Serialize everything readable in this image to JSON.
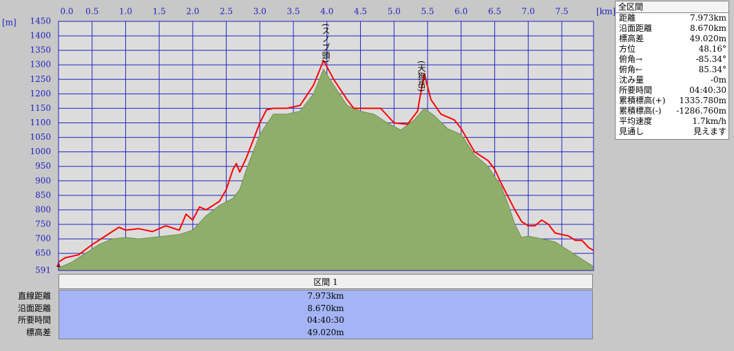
{
  "chart_data": {
    "type": "elevation-profile",
    "x_label": "[km]",
    "y_label": "[m]",
    "xlim": [
      0,
      7.973
    ],
    "ylim": [
      591,
      1450
    ],
    "xticks": [
      {
        "value": 0,
        "label": "0.0"
      },
      0.5,
      {
        "value": 1,
        "label": "1.0"
      },
      1.5,
      {
        "value": 2,
        "label": "2.0"
      },
      2.5,
      {
        "value": 3,
        "label": "3.0"
      },
      3.5,
      {
        "value": 4,
        "label": "4.0"
      },
      4.5,
      {
        "value": 5,
        "label": "5.0"
      },
      5.5,
      {
        "value": 6,
        "label": "6.0"
      },
      6.5,
      {
        "value": 7,
        "label": "7.0"
      },
      7.5
    ],
    "yticks": [
      591,
      650,
      700,
      750,
      800,
      850,
      900,
      950,
      1000,
      1050,
      1100,
      1150,
      1200,
      1250,
      1300,
      1350,
      1400,
      1450
    ],
    "grid": true,
    "annotations": [
      "(スノブ頭)",
      "(天狗岳)"
    ],
    "series": [
      {
        "kind": "area",
        "color": "#8fae6b",
        "x": [
          0,
          0.2,
          0.4,
          0.6,
          0.8,
          1.0,
          1.2,
          1.4,
          1.6,
          1.8,
          2.0,
          2.2,
          2.4,
          2.6,
          2.7,
          2.8,
          3.0,
          3.2,
          3.4,
          3.6,
          3.8,
          3.95,
          4.1,
          4.3,
          4.5,
          4.7,
          4.9,
          5.1,
          5.3,
          5.45,
          5.6,
          5.8,
          6.0,
          6.2,
          6.4,
          6.6,
          6.7,
          6.8,
          6.9,
          7.0,
          7.2,
          7.4,
          7.6,
          7.8,
          7.973
        ],
        "values": [
          600,
          620,
          650,
          680,
          700,
          705,
          700,
          705,
          710,
          715,
          730,
          780,
          815,
          840,
          870,
          940,
          1060,
          1130,
          1130,
          1140,
          1200,
          1285,
          1230,
          1160,
          1140,
          1130,
          1100,
          1075,
          1110,
          1150,
          1125,
          1080,
          1060,
          990,
          950,
          880,
          820,
          750,
          705,
          710,
          700,
          690,
          660,
          630,
          605
        ]
      },
      {
        "kind": "line",
        "color": "#ff0000",
        "x": [
          0,
          0.1,
          0.3,
          0.5,
          0.7,
          0.8,
          0.9,
          1.0,
          1.2,
          1.4,
          1.6,
          1.8,
          1.9,
          2.0,
          2.1,
          2.2,
          2.4,
          2.5,
          2.6,
          2.65,
          2.7,
          2.8,
          3.0,
          3.1,
          3.2,
          3.4,
          3.6,
          3.8,
          3.95,
          4.1,
          4.3,
          4.4,
          4.6,
          4.8,
          5.0,
          5.2,
          5.35,
          5.45,
          5.55,
          5.7,
          5.9,
          6.0,
          6.2,
          6.4,
          6.5,
          6.6,
          6.8,
          6.9,
          7.0,
          7.1,
          7.2,
          7.3,
          7.4,
          7.5,
          7.6,
          7.7,
          7.8,
          7.9,
          7.973
        ],
        "values": [
          620,
          635,
          645,
          680,
          710,
          725,
          740,
          730,
          735,
          725,
          745,
          730,
          785,
          765,
          810,
          800,
          830,
          870,
          940,
          960,
          930,
          980,
          1100,
          1145,
          1150,
          1150,
          1160,
          1230,
          1315,
          1250,
          1180,
          1150,
          1150,
          1150,
          1100,
          1095,
          1140,
          1270,
          1180,
          1130,
          1110,
          1080,
          1000,
          970,
          940,
          890,
          800,
          760,
          745,
          745,
          765,
          750,
          720,
          715,
          710,
          695,
          695,
          670,
          660
        ]
      }
    ]
  },
  "side_panel": {
    "title": "全区間",
    "rows": [
      [
        "距離",
        "7.973km"
      ],
      [
        "沿面距離",
        "8.670km"
      ],
      [
        "標高差",
        "49.020m"
      ],
      [
        "方位",
        "48.16°"
      ],
      [
        "俯角→",
        "-85.34°"
      ],
      [
        "俯角←",
        "85.34°"
      ],
      [
        "沈み量",
        "-0m"
      ],
      [
        "所要時間",
        "04:40:30"
      ],
      [
        "累積標高(+)",
        "1335.780m"
      ],
      [
        "累積標高(-)",
        "-1286.760m"
      ],
      [
        "平均速度",
        "1.7km/h"
      ],
      [
        "見通し",
        "見えます"
      ]
    ]
  },
  "section_table": {
    "header": "区間 1",
    "rows": [
      [
        "直線距離",
        "7.973km"
      ],
      [
        "沿面距離",
        "8.670km"
      ],
      [
        "所要時間",
        "04:40:30"
      ],
      [
        "標高差",
        "49.020m"
      ]
    ]
  }
}
